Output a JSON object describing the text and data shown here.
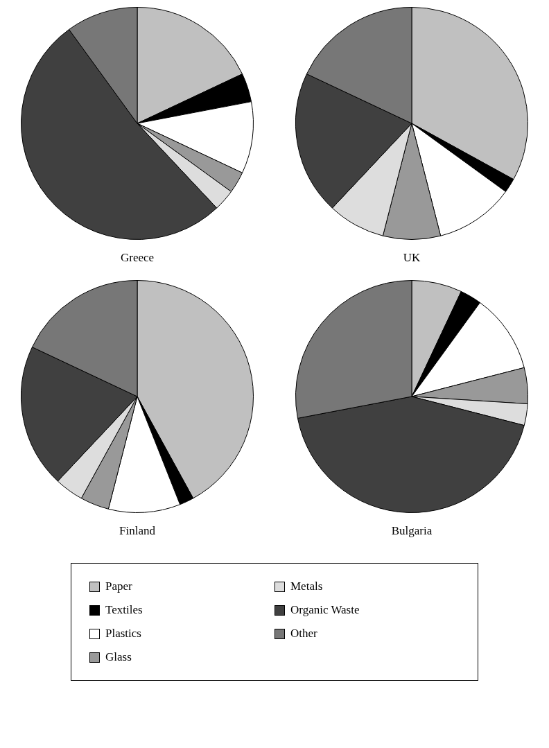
{
  "chart_data": [
    {
      "type": "pie",
      "title": "Greece",
      "categories": [
        "Paper",
        "Textiles",
        "Plastics",
        "Glass",
        "Metals",
        "Organic Waste",
        "Other"
      ],
      "values": [
        18,
        4,
        10,
        3,
        3,
        52,
        10
      ],
      "colors": [
        "#c0c0c0",
        "#000000",
        "#ffffff",
        "#999999",
        "#dddddd",
        "#404040",
        "#777777"
      ],
      "legend": "bottom"
    },
    {
      "type": "pie",
      "title": "UK",
      "categories": [
        null,
        null,
        null,
        null,
        null,
        null,
        null
      ],
      "values": [
        33,
        2,
        11,
        8,
        8,
        20,
        18
      ],
      "colors": [
        "#c0c0c0",
        "#000000",
        "#ffffff",
        "#999999",
        "#dddddd",
        "#404040",
        "#777777"
      ]
    },
    {
      "type": "pie",
      "title": "Finland",
      "categories": [
        null,
        null,
        null,
        null,
        null,
        null,
        null
      ],
      "values": [
        42,
        2,
        10,
        4,
        4,
        20,
        18
      ],
      "colors": [
        "#c0c0c0",
        "#000000",
        "#ffffff",
        "#999999",
        "#dddddd",
        "#404040",
        "#777777"
      ]
    },
    {
      "type": "pie",
      "title": "Bulgaria",
      "categories": [
        null,
        null,
        null,
        null,
        null,
        null,
        null
      ],
      "values": [
        7,
        3,
        11,
        5,
        3,
        43,
        28
      ],
      "colors": [
        "#c0c0c0",
        "#000000",
        "#ffffff",
        "#999999",
        "#dddddd",
        "#404040",
        "#777777"
      ]
    }
  ]
}
